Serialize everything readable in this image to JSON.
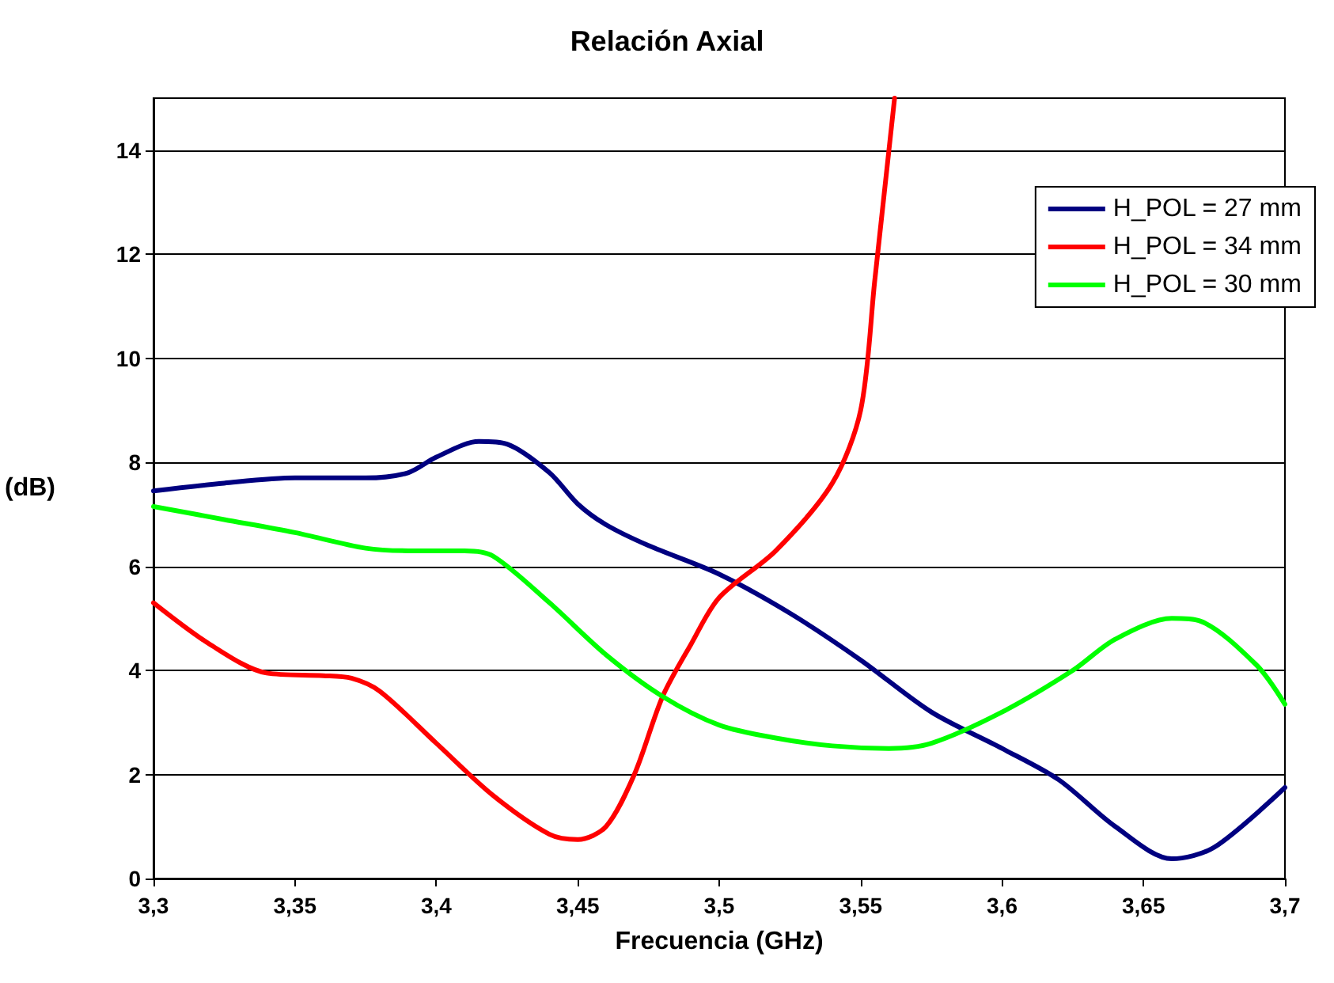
{
  "chart_data": {
    "type": "line",
    "title": "Relación Axial",
    "xlabel": "Frecuencia (GHz)",
    "ylabel": "(dB)",
    "xlim": [
      3.3,
      3.7
    ],
    "ylim": [
      0,
      15
    ],
    "xticks": [
      {
        "value": 3.3,
        "label": "3,3"
      },
      {
        "value": 3.35,
        "label": "3,35"
      },
      {
        "value": 3.4,
        "label": "3,4"
      },
      {
        "value": 3.45,
        "label": "3,45"
      },
      {
        "value": 3.5,
        "label": "3,5"
      },
      {
        "value": 3.55,
        "label": "3,55"
      },
      {
        "value": 3.6,
        "label": "3,6"
      },
      {
        "value": 3.65,
        "label": "3,65"
      },
      {
        "value": 3.7,
        "label": "3,7"
      }
    ],
    "yticks": [
      0,
      2,
      4,
      6,
      8,
      10,
      12,
      14
    ],
    "grid": "y",
    "legend": "top right",
    "marker": "none",
    "line_style": "solid",
    "series": [
      {
        "name": "H_POL = 27 mm",
        "color": "#000080",
        "x": [
          3.3,
          3.325,
          3.35,
          3.375,
          3.39,
          3.4,
          3.415,
          3.425,
          3.44,
          3.45,
          3.46,
          3.475,
          3.5,
          3.525,
          3.55,
          3.575,
          3.6,
          3.62,
          3.64,
          3.66,
          3.675,
          3.7
        ],
        "values": [
          7.45,
          7.6,
          7.7,
          7.7,
          7.8,
          8.1,
          8.4,
          8.35,
          7.8,
          7.2,
          6.8,
          6.4,
          5.85,
          5.1,
          4.2,
          3.2,
          2.5,
          1.9,
          1.0,
          0.38,
          0.6,
          1.75
        ]
      },
      {
        "name": "H_POL = 34 mm",
        "color": "#ff0000",
        "x": [
          3.3,
          3.32,
          3.34,
          3.36,
          3.37,
          3.38,
          3.4,
          3.42,
          3.44,
          3.45,
          3.46,
          3.47,
          3.48,
          3.49,
          3.5,
          3.52,
          3.54,
          3.55,
          3.555,
          3.56,
          3.562
        ],
        "values": [
          5.3,
          4.5,
          3.95,
          3.9,
          3.85,
          3.6,
          2.6,
          1.6,
          0.85,
          0.75,
          1.0,
          2.0,
          3.5,
          4.5,
          5.4,
          6.3,
          7.6,
          9.0,
          11.5,
          14,
          15
        ]
      },
      {
        "name": "H_POL = 30 mm",
        "color": "#00ff00",
        "x": [
          3.3,
          3.325,
          3.35,
          3.375,
          3.39,
          3.41,
          3.42,
          3.44,
          3.46,
          3.48,
          3.5,
          3.52,
          3.54,
          3.56,
          3.575,
          3.6,
          3.625,
          3.64,
          3.66,
          3.67,
          3.69,
          3.7
        ],
        "values": [
          7.15,
          6.9,
          6.65,
          6.35,
          6.3,
          6.3,
          6.2,
          5.3,
          4.3,
          3.5,
          2.95,
          2.7,
          2.55,
          2.5,
          2.6,
          3.2,
          4.0,
          4.6,
          5.0,
          4.95,
          4.1,
          3.35
        ]
      }
    ]
  }
}
